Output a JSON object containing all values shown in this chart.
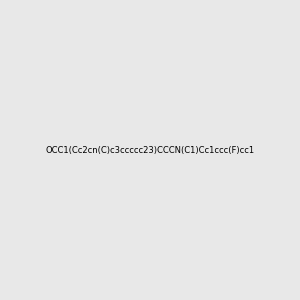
{
  "smiles": "OCC1(Cc2cn(C)c3ccccc23)CCCN(C1)Cc1ccc(F)cc1",
  "title": "",
  "img_size": [
    300,
    300
  ],
  "background_color": "#e8e8e8"
}
